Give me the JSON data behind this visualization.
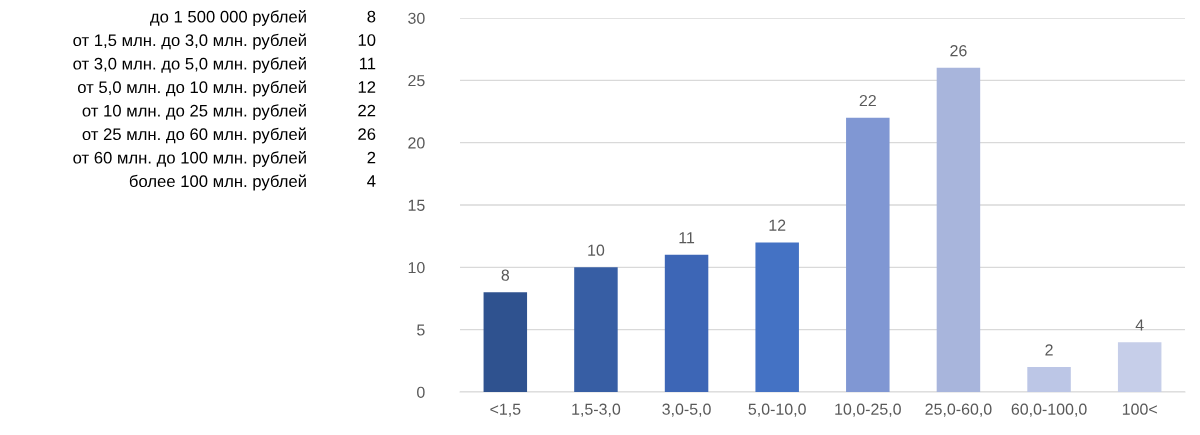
{
  "chart_data": {
    "type": "bar",
    "categories": [
      "<1,5",
      "1,5-3,0",
      "3,0-5,0",
      "5,0-10,0",
      "10,0-25,0",
      "25,0-60,0",
      "60,0-100,0",
      "100<"
    ],
    "values": [
      8,
      10,
      11,
      12,
      22,
      26,
      2,
      4
    ],
    "colors": [
      "#2f528f",
      "#375ea4",
      "#3d66b6",
      "#4472c4",
      "#8097d3",
      "#a8b5dc",
      "#bcc6e6",
      "#c6cee9"
    ],
    "ylim": [
      0,
      30
    ],
    "yticks": [
      0,
      5,
      10,
      15,
      20,
      25,
      30
    ],
    "grid": "y",
    "data_labels": true,
    "annotations": [
      "до 1 500 000 рублей",
      "8",
      "от 1,5 млн. до 3,0 млн. рублей",
      "10",
      "от 3,0 млн. до 5,0 млн. рублей",
      "11",
      "от 5,0 млн. до 10 млн. рублей",
      "12",
      "от 10 млн. до 25 млн. рублей",
      "22",
      "от 25 млн. до 60 млн. рублей",
      "26",
      "от 60 млн. до 100 млн. рублей",
      "2",
      "более 100 млн. рублей",
      "4"
    ]
  }
}
